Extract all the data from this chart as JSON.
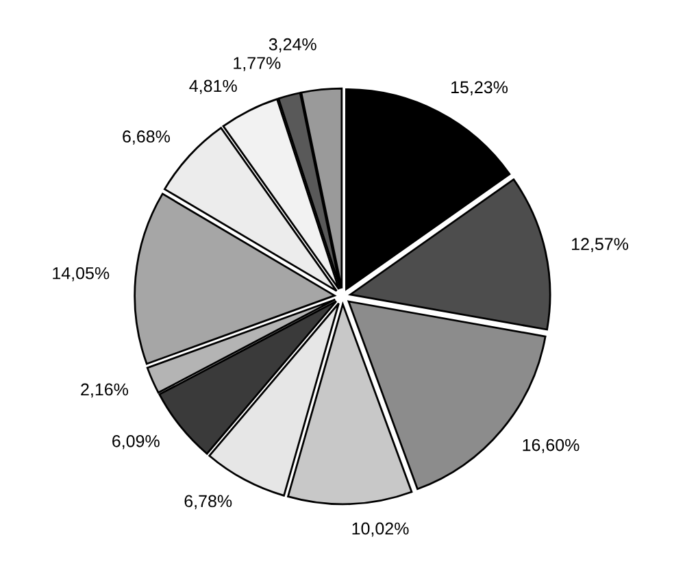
{
  "chart_data": {
    "type": "pie",
    "categories": [
      null,
      null,
      null,
      null,
      null,
      null,
      null,
      null,
      null,
      null,
      null,
      null
    ],
    "values": [
      15.23,
      12.57,
      16.6,
      10.02,
      6.78,
      6.09,
      2.16,
      14.05,
      6.68,
      4.81,
      1.77,
      3.24
    ],
    "value_labels": [
      "15,23%",
      "12,57%",
      "16,60%",
      "10,02%",
      "6,78%",
      "6,09%",
      "2,16%",
      "14,05%",
      "6,68%",
      "4,81%",
      "1,77%",
      "3,24%"
    ],
    "colors": [
      "#000000",
      "#4d4d4d",
      "#8c8c8c",
      "#c8c8c8",
      "#e6e6e6",
      "#3a3a3a",
      "#b4b4b4",
      "#a6a6a6",
      "#ececec",
      "#f2f2f2",
      "#595959",
      "#9a9a9a"
    ],
    "legend": false
  }
}
